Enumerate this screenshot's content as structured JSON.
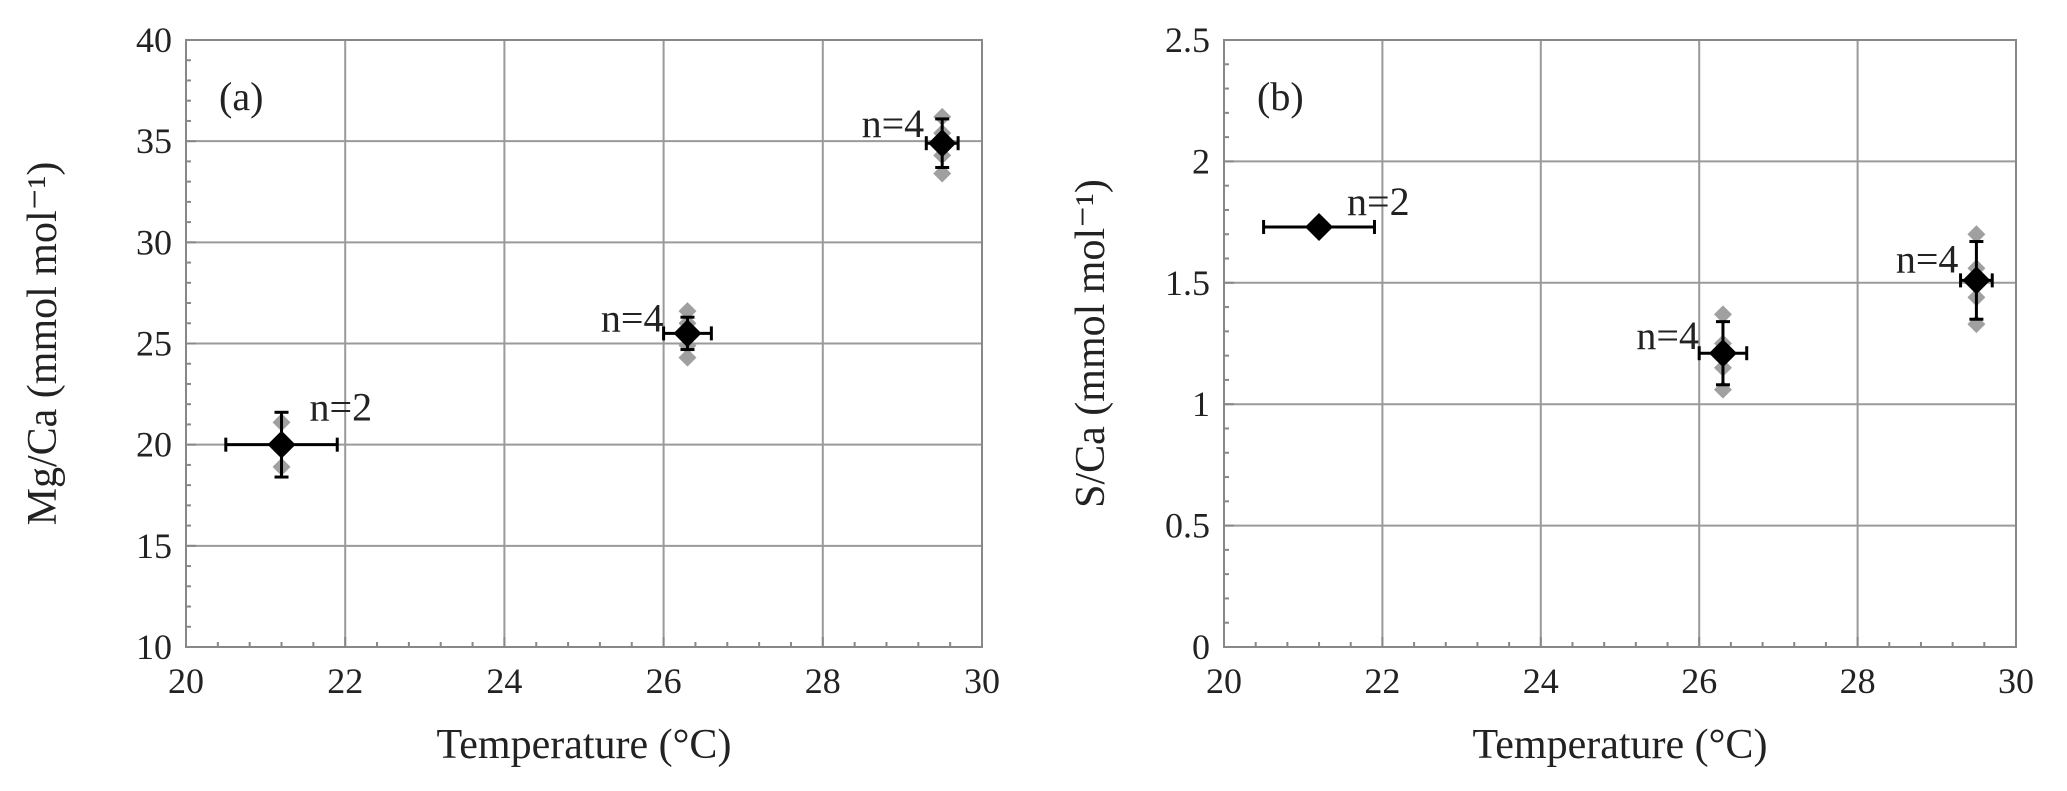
{
  "chart_data": [
    {
      "type": "scatter",
      "panel_label": "(a)",
      "xlabel": "Temperature (°C)",
      "ylabel": "Mg/Ca (mmol mol⁻¹)",
      "xlim": [
        20,
        30
      ],
      "ylim": [
        10,
        40
      ],
      "xticks": [
        20,
        22,
        24,
        26,
        28,
        30
      ],
      "yticks": [
        10,
        15,
        20,
        25,
        30,
        35,
        40
      ],
      "grid": true,
      "series": [
        {
          "points": [
            {
              "x": 21.2,
              "y": 20.0,
              "xerr": 0.7,
              "yerr": 1.6,
              "label": "n=2"
            },
            {
              "x": 26.3,
              "y": 25.5,
              "xerr": 0.3,
              "yerr": 0.8,
              "label": "n=4"
            },
            {
              "x": 29.5,
              "y": 34.9,
              "xerr": 0.2,
              "yerr": 1.2,
              "label": "n=4"
            }
          ]
        },
        {
          "points": [
            {
              "x": 21.2,
              "y": 21.1
            },
            {
              "x": 21.2,
              "y": 18.9
            },
            {
              "x": 26.3,
              "y": 26.6
            },
            {
              "x": 26.3,
              "y": 26.0
            },
            {
              "x": 26.3,
              "y": 24.9
            },
            {
              "x": 26.3,
              "y": 24.3
            },
            {
              "x": 29.5,
              "y": 36.2
            },
            {
              "x": 29.5,
              "y": 35.4
            },
            {
              "x": 29.5,
              "y": 34.3
            },
            {
              "x": 29.5,
              "y": 33.4
            }
          ]
        }
      ]
    },
    {
      "type": "scatter",
      "panel_label": "(b)",
      "xlabel": "Temperature (°C)",
      "ylabel": "S/Ca (mmol mol⁻¹)",
      "xlim": [
        20,
        30
      ],
      "ylim": [
        0,
        2.5
      ],
      "xticks": [
        20,
        22,
        24,
        26,
        28,
        30
      ],
      "yticks": [
        0,
        0.5,
        1,
        1.5,
        2,
        2.5
      ],
      "grid": true,
      "series": [
        {
          "points": [
            {
              "x": 21.2,
              "y": 1.73,
              "xerr": 0.7,
              "yerr": 0,
              "label": "n=2"
            },
            {
              "x": 26.3,
              "y": 1.21,
              "xerr": 0.3,
              "yerr": 0.13,
              "label": "n=4"
            },
            {
              "x": 29.5,
              "y": 1.51,
              "xerr": 0.2,
              "yerr": 0.16,
              "label": "n=4"
            }
          ]
        },
        {
          "points": [
            {
              "x": 26.3,
              "y": 1.37
            },
            {
              "x": 26.3,
              "y": 1.25
            },
            {
              "x": 26.3,
              "y": 1.15
            },
            {
              "x": 26.3,
              "y": 1.06
            },
            {
              "x": 29.5,
              "y": 1.7
            },
            {
              "x": 29.5,
              "y": 1.56
            },
            {
              "x": 29.5,
              "y": 1.44
            },
            {
              "x": 29.5,
              "y": 1.33
            }
          ]
        }
      ]
    }
  ],
  "colors": {
    "mean_marker": "#000000",
    "replicate_marker": "#a0a0a0",
    "grid": "#9a9a9a",
    "axis": "#888888",
    "text": "#222222"
  }
}
